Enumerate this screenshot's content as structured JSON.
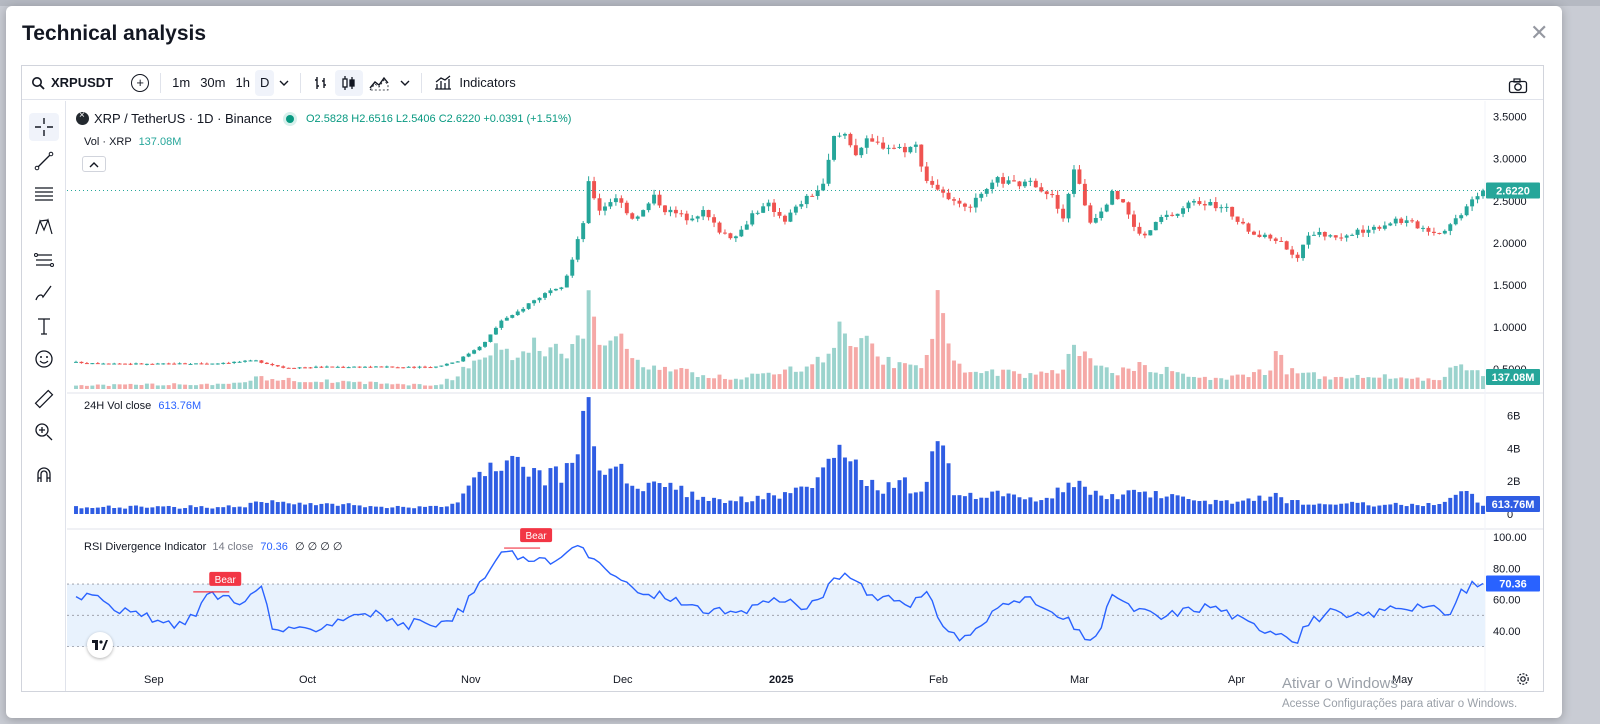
{
  "modal": {
    "title": "Technical analysis"
  },
  "toolbar": {
    "symbol": "XRPUSDT",
    "intervals": [
      "1m",
      "30m",
      "1h",
      "D"
    ],
    "indicators_label": "Indicators"
  },
  "legend": {
    "title": "XRP / TetherUS · 1D · Binance",
    "ohlc": "O2.5828 H2.6516 L2.5406 C2.6220 +0.0391 (+1.51%)",
    "vol_label": "Vol · XRP",
    "vol_value": "137.08M",
    "vol24_label": "24H Vol close",
    "vol24_value": "613.76M",
    "rsi_label": "RSI Divergence Indicator",
    "rsi_params": "14 close",
    "rsi_value": "70.36",
    "rsi_extra": "∅ ∅ ∅ ∅"
  },
  "price_badge": "2.6220",
  "vol_badge": "137.08M",
  "vol24_badge": "613.76M",
  "rsi_badge": "70.36",
  "watermark": {
    "line1": "Ativar o Windows",
    "line2": "Acesse Configurações para ativar o Windows."
  },
  "colors": {
    "up": "#26a69a",
    "down": "#ef5350",
    "vol_up": "#9bd3cd",
    "vol_down": "#f5a9a7",
    "vol24": "#2f5de3",
    "rsi_line": "#2962ff",
    "rsi_band": "#e8f2fd",
    "bear": "#f23645"
  },
  "chart_data": {
    "type": "candlestick",
    "symbol": "XRP / TetherUS · 1D · Binance",
    "x_tick_labels": [
      "Sep",
      "Oct",
      "Nov",
      "Dec",
      "2025",
      "Feb",
      "Mar",
      "Apr",
      "May"
    ],
    "price_axis": {
      "ticks": [
        "3.5000",
        "3.0000",
        "2.5000",
        "2.0000",
        "1.5000",
        "1.0000",
        "0.5000"
      ],
      "range": [
        0.3,
        3.65
      ]
    },
    "vol24_axis": {
      "ticks": [
        "6B",
        "4B",
        "2B",
        "0"
      ]
    },
    "rsi_axis": {
      "ticks": [
        "100.00",
        "80.00",
        "60.00",
        "40.00"
      ],
      "band": [
        30,
        70
      ]
    },
    "last_close": 2.622,
    "price_anchors": [
      [
        0,
        0.58
      ],
      [
        13,
        0.56
      ],
      [
        25,
        0.57
      ],
      [
        33,
        0.6
      ],
      [
        38,
        0.52
      ],
      [
        52,
        0.53
      ],
      [
        62,
        0.52
      ],
      [
        66,
        0.53
      ],
      [
        70,
        0.6
      ],
      [
        75,
        0.82
      ],
      [
        78,
        1.08
      ],
      [
        80,
        1.13
      ],
      [
        83,
        1.28
      ],
      [
        86,
        1.4
      ],
      [
        89,
        1.45
      ],
      [
        91,
        1.8
      ],
      [
        93,
        2.25
      ],
      [
        94,
        2.7
      ],
      [
        96,
        2.4
      ],
      [
        99,
        2.55
      ],
      [
        102,
        2.3
      ],
      [
        104,
        2.38
      ],
      [
        106,
        2.55
      ],
      [
        108,
        2.4
      ],
      [
        112,
        2.3
      ],
      [
        115,
        2.37
      ],
      [
        118,
        2.15
      ],
      [
        121,
        2.05
      ],
      [
        124,
        2.35
      ],
      [
        127,
        2.45
      ],
      [
        130,
        2.28
      ],
      [
        133,
        2.48
      ],
      [
        137,
        2.68
      ],
      [
        139,
        3.25
      ],
      [
        141,
        3.3
      ],
      [
        143,
        3.08
      ],
      [
        145,
        3.2
      ],
      [
        149,
        3.15
      ],
      [
        152,
        3.12
      ],
      [
        154,
        3.15
      ],
      [
        156,
        2.75
      ],
      [
        158,
        2.65
      ],
      [
        160,
        2.5
      ],
      [
        163,
        2.4
      ],
      [
        166,
        2.55
      ],
      [
        169,
        2.75
      ],
      [
        172,
        2.7
      ],
      [
        176,
        2.7
      ],
      [
        179,
        2.55
      ],
      [
        181,
        2.27
      ],
      [
        183,
        2.9
      ],
      [
        186,
        2.25
      ],
      [
        188,
        2.4
      ],
      [
        190,
        2.58
      ],
      [
        192,
        2.5
      ],
      [
        194,
        2.18
      ],
      [
        196,
        2.08
      ],
      [
        199,
        2.3
      ],
      [
        202,
        2.35
      ],
      [
        205,
        2.52
      ],
      [
        208,
        2.45
      ],
      [
        211,
        2.4
      ],
      [
        214,
        2.2
      ],
      [
        217,
        2.08
      ],
      [
        220,
        2.05
      ],
      [
        222,
        1.95
      ],
      [
        224,
        1.8
      ],
      [
        225,
        2.0
      ],
      [
        227,
        2.12
      ],
      [
        230,
        2.08
      ],
      [
        233,
        2.08
      ],
      [
        236,
        2.15
      ],
      [
        239,
        2.2
      ],
      [
        242,
        2.28
      ],
      [
        244,
        2.25
      ],
      [
        247,
        2.18
      ],
      [
        250,
        2.12
      ],
      [
        252,
        2.22
      ],
      [
        254,
        2.36
      ],
      [
        256,
        2.55
      ],
      [
        258,
        2.622
      ]
    ],
    "volume_anchors": [
      [
        0,
        0.04
      ],
      [
        30,
        0.06
      ],
      [
        33,
        0.12
      ],
      [
        66,
        0.04
      ],
      [
        70,
        0.15
      ],
      [
        75,
        0.45
      ],
      [
        80,
        0.35
      ],
      [
        85,
        0.5
      ],
      [
        90,
        0.35
      ],
      [
        93,
        0.55
      ],
      [
        94,
        1.35
      ],
      [
        96,
        0.4
      ],
      [
        100,
        0.55
      ],
      [
        104,
        0.3
      ],
      [
        110,
        0.2
      ],
      [
        120,
        0.12
      ],
      [
        125,
        0.15
      ],
      [
        130,
        0.2
      ],
      [
        136,
        0.3
      ],
      [
        140,
        0.6
      ],
      [
        145,
        0.5
      ],
      [
        148,
        0.3
      ],
      [
        152,
        0.28
      ],
      [
        155,
        0.2
      ],
      [
        158,
        0.95
      ],
      [
        161,
        0.3
      ],
      [
        166,
        0.15
      ],
      [
        170,
        0.2
      ],
      [
        175,
        0.15
      ],
      [
        180,
        0.18
      ],
      [
        183,
        0.45
      ],
      [
        186,
        0.3
      ],
      [
        190,
        0.18
      ],
      [
        195,
        0.25
      ],
      [
        200,
        0.2
      ],
      [
        205,
        0.12
      ],
      [
        210,
        0.12
      ],
      [
        215,
        0.15
      ],
      [
        219,
        0.2
      ],
      [
        220,
        0.55
      ],
      [
        222,
        0.2
      ],
      [
        230,
        0.12
      ],
      [
        240,
        0.15
      ],
      [
        250,
        0.1
      ],
      [
        254,
        0.3
      ],
      [
        258,
        0.14
      ]
    ],
    "vol24_anchors": [
      [
        0,
        0.4
      ],
      [
        30,
        0.45
      ],
      [
        33,
        0.7
      ],
      [
        66,
        0.4
      ],
      [
        70,
        0.8
      ],
      [
        74,
        2.3
      ],
      [
        78,
        2.8
      ],
      [
        82,
        3.2
      ],
      [
        86,
        2.2
      ],
      [
        90,
        2.5
      ],
      [
        94,
        6.7
      ],
      [
        96,
        3.0
      ],
      [
        100,
        2.5
      ],
      [
        104,
        1.8
      ],
      [
        108,
        2.0
      ],
      [
        112,
        1.2
      ],
      [
        120,
        0.8
      ],
      [
        125,
        1.0
      ],
      [
        130,
        1.2
      ],
      [
        136,
        1.8
      ],
      [
        140,
        3.8
      ],
      [
        144,
        2.4
      ],
      [
        148,
        1.5
      ],
      [
        152,
        1.8
      ],
      [
        155,
        1.2
      ],
      [
        158,
        4.6
      ],
      [
        161,
        1.5
      ],
      [
        166,
        1.0
      ],
      [
        170,
        1.2
      ],
      [
        175,
        0.9
      ],
      [
        180,
        1.3
      ],
      [
        183,
        2.1
      ],
      [
        186,
        1.2
      ],
      [
        190,
        1.0
      ],
      [
        195,
        1.5
      ],
      [
        200,
        1.1
      ],
      [
        205,
        0.7
      ],
      [
        210,
        0.8
      ],
      [
        215,
        0.8
      ],
      [
        219,
        1.0
      ],
      [
        220,
        1.7
      ],
      [
        222,
        0.8
      ],
      [
        230,
        0.6
      ],
      [
        240,
        0.6
      ],
      [
        250,
        0.6
      ],
      [
        254,
        1.4
      ],
      [
        258,
        0.61
      ]
    ],
    "rsi_anchors": [
      [
        0,
        62
      ],
      [
        4,
        65
      ],
      [
        7,
        55
      ],
      [
        11,
        50
      ],
      [
        14,
        48
      ],
      [
        18,
        42
      ],
      [
        22,
        52
      ],
      [
        24,
        63
      ],
      [
        28,
        62
      ],
      [
        31,
        58
      ],
      [
        34,
        69
      ],
      [
        36,
        42
      ],
      [
        40,
        39
      ],
      [
        44,
        42
      ],
      [
        48,
        47
      ],
      [
        52,
        52
      ],
      [
        56,
        50
      ],
      [
        60,
        43
      ],
      [
        64,
        47
      ],
      [
        68,
        44
      ],
      [
        71,
        55
      ],
      [
        74,
        70
      ],
      [
        77,
        85
      ],
      [
        79,
        91
      ],
      [
        81,
        88
      ],
      [
        83,
        82
      ],
      [
        85,
        89
      ],
      [
        88,
        84
      ],
      [
        90,
        90
      ],
      [
        93,
        94
      ],
      [
        95,
        85
      ],
      [
        97,
        78
      ],
      [
        99,
        75
      ],
      [
        101,
        70
      ],
      [
        104,
        62
      ],
      [
        108,
        63
      ],
      [
        112,
        56
      ],
      [
        118,
        52
      ],
      [
        122,
        50
      ],
      [
        125,
        58
      ],
      [
        130,
        61
      ],
      [
        134,
        53
      ],
      [
        138,
        68
      ],
      [
        140,
        75
      ],
      [
        142,
        76
      ],
      [
        145,
        63
      ],
      [
        149,
        62
      ],
      [
        153,
        58
      ],
      [
        156,
        63
      ],
      [
        158,
        50
      ],
      [
        160,
        40
      ],
      [
        162,
        35
      ],
      [
        166,
        42
      ],
      [
        169,
        55
      ],
      [
        172,
        62
      ],
      [
        176,
        58
      ],
      [
        179,
        50
      ],
      [
        182,
        46
      ],
      [
        184,
        38
      ],
      [
        186,
        35
      ],
      [
        188,
        40
      ],
      [
        190,
        65
      ],
      [
        193,
        55
      ],
      [
        196,
        52
      ],
      [
        199,
        48
      ],
      [
        202,
        52
      ],
      [
        205,
        54
      ],
      [
        208,
        56
      ],
      [
        211,
        52
      ],
      [
        214,
        46
      ],
      [
        217,
        42
      ],
      [
        220,
        40
      ],
      [
        222,
        38
      ],
      [
        224,
        34
      ],
      [
        225,
        42
      ],
      [
        227,
        47
      ],
      [
        230,
        52
      ],
      [
        233,
        48
      ],
      [
        236,
        50
      ],
      [
        239,
        52
      ],
      [
        242,
        56
      ],
      [
        244,
        55
      ],
      [
        247,
        57
      ],
      [
        250,
        52
      ],
      [
        252,
        50
      ],
      [
        254,
        65
      ],
      [
        256,
        69
      ],
      [
        258,
        70.36
      ]
    ],
    "bear_labels": [
      {
        "text": "Bear",
        "index": 27,
        "rsi": 65
      },
      {
        "text": "Bear",
        "index": 84,
        "rsi": 93
      }
    ]
  }
}
